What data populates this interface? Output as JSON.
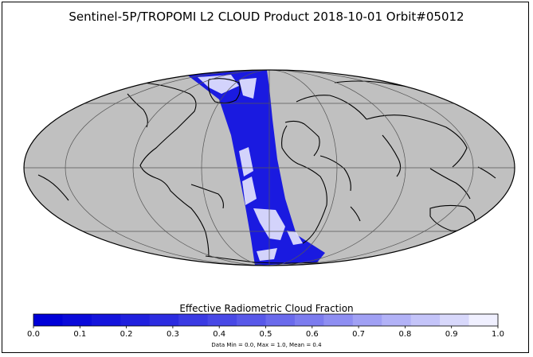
{
  "title": "Sentinel-5P/TROPOMI L2 CLOUD Product 2018-10-01 Orbit#05012",
  "colorbar": {
    "label": "Effective Radiometric Cloud Fraction",
    "ticks": [
      "0.0",
      "0.1",
      "0.2",
      "0.3",
      "0.4",
      "0.5",
      "0.6",
      "0.7",
      "0.8",
      "0.9",
      "1.0"
    ],
    "min": 0.0,
    "max": 1.0,
    "colors": [
      "#0000d8",
      "#0a0ada",
      "#1414dc",
      "#2020de",
      "#2c2ce0",
      "#3a3ae3",
      "#4848e6",
      "#5858e9",
      "#6a6aec",
      "#7c7cef",
      "#8e8ef2",
      "#a0a0f4",
      "#b2b2f7",
      "#c4c4f9",
      "#d8d8fb",
      "#f0f0ff"
    ],
    "stats": "Data Min = 0.0, Max = 1.0, Mean = 0.4"
  },
  "map": {
    "projection": "mollweide",
    "land_color": "#c0c0c0",
    "coast_color": "#000000",
    "grid_color": "#555555",
    "swath_color": "#1a1ae0"
  },
  "chart_data": {
    "type": "heatmap",
    "title": "Sentinel-5P/TROPOMI L2 CLOUD Product 2018-10-01 Orbit#05012",
    "colorbar_label": "Effective Radiometric Cloud Fraction",
    "colorbar_range": [
      0.0,
      1.0
    ],
    "colorbar_ticks": [
      0.0,
      0.1,
      0.2,
      0.3,
      0.4,
      0.5,
      0.6,
      0.7,
      0.8,
      0.9,
      1.0
    ],
    "data_min": 0.0,
    "data_max": 1.0,
    "data_mean": 0.4,
    "date": "2018-10-01",
    "orbit": "05012"
  }
}
